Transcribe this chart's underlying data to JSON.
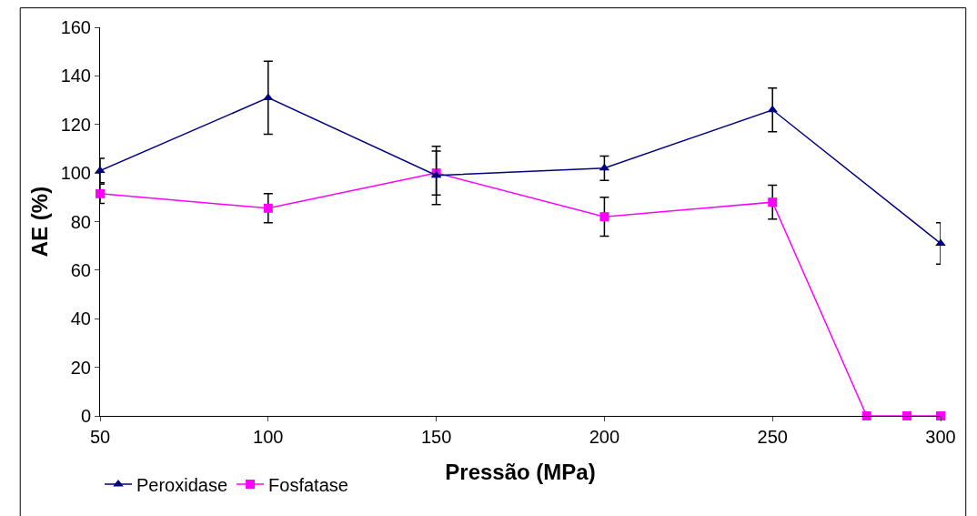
{
  "chart_data": {
    "type": "line",
    "xlabel": "Pressão (MPa)",
    "ylabel": "AE (%)",
    "xlim": [
      50,
      300
    ],
    "xticks": [
      50,
      100,
      150,
      200,
      250,
      300
    ],
    "ylim": [
      0,
      160
    ],
    "yticks": [
      0,
      20,
      40,
      60,
      80,
      100,
      120,
      140,
      160
    ],
    "grid": false,
    "legend": "bottom left",
    "line_style": "solid",
    "series": [
      {
        "name": "Peroxidase",
        "color": "#000080",
        "marker": "triangle",
        "x": [
          50,
          100,
          150,
          200,
          250,
          300
        ],
        "values": [
          101,
          131,
          99,
          102,
          126,
          71
        ],
        "errors": [
          5,
          15,
          12,
          5,
          9,
          8.5
        ]
      },
      {
        "name": "Fosfatase",
        "color": "#ff00ff",
        "marker": "square",
        "x": [
          50,
          100,
          150,
          200,
          250,
          278,
          290,
          300
        ],
        "values": [
          91.5,
          85.5,
          100,
          82,
          88,
          0,
          0,
          0
        ],
        "errors": [
          4,
          6,
          9,
          8,
          7,
          null,
          null,
          null
        ]
      }
    ]
  }
}
